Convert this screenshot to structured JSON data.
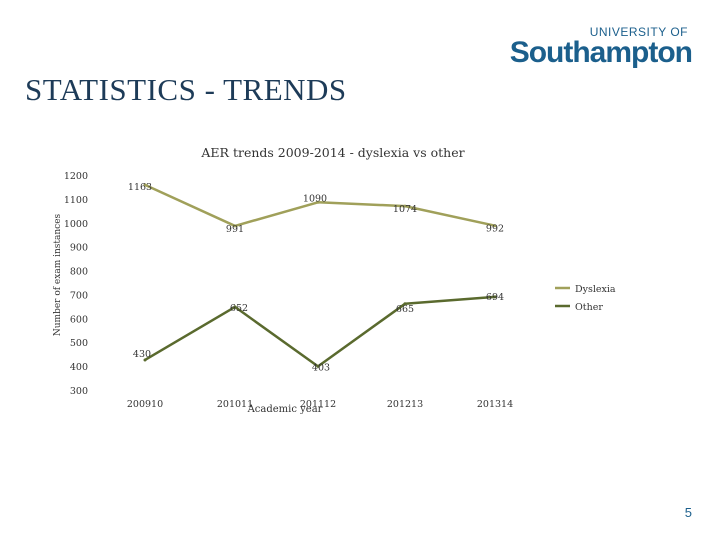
{
  "logo": {
    "line1": "UNIVERSITY OF",
    "line2": "Southampton"
  },
  "slide": {
    "title": "STATISTICS - TRENDS",
    "page_number": "5"
  },
  "colors": {
    "dyslexia": "#a0a05a",
    "other": "#5a6a2e"
  },
  "chart_data": {
    "type": "line",
    "title": "AER trends 2009-2014 - dyslexia vs other",
    "xlabel": "Academic year",
    "ylabel": "Number of exam instances",
    "categories": [
      "200910",
      "201011",
      "201112",
      "201213",
      "201314"
    ],
    "ylim": [
      300,
      1200
    ],
    "yticks": [
      300,
      400,
      500,
      600,
      700,
      800,
      900,
      1000,
      1100,
      1200
    ],
    "legend_position": "right",
    "series": [
      {
        "name": "Dyslexia",
        "values": [
          1163,
          991,
          1090,
          1074,
          992
        ]
      },
      {
        "name": "Other",
        "values": [
          430,
          652,
          403,
          665,
          694
        ]
      }
    ]
  }
}
